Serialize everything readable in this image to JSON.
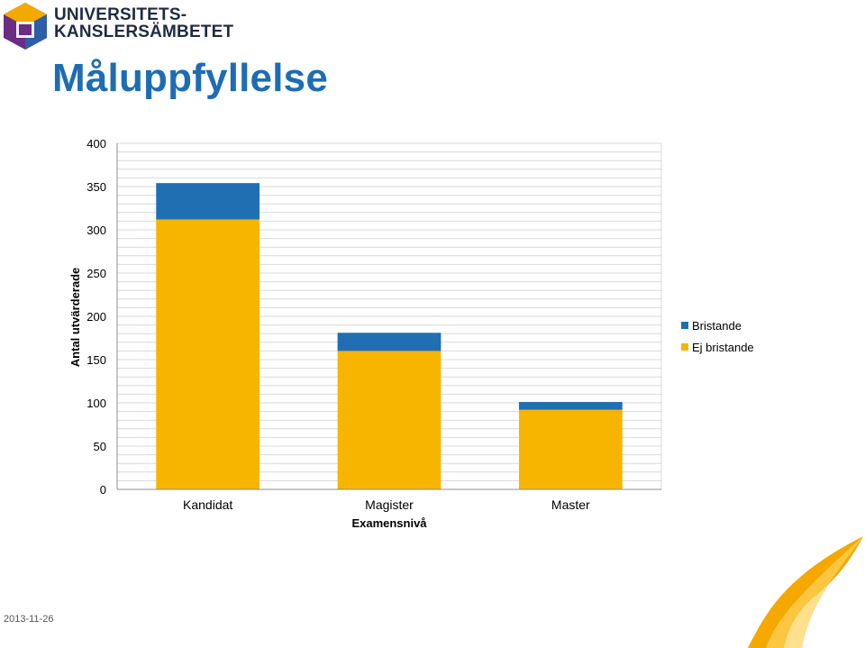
{
  "logo": {
    "line1": "UNIVERSITETS-",
    "line2": "KANSLERSÄMBETET",
    "icon": "hexagon-logo-icon"
  },
  "page_title": "Måluppfyllelse",
  "footer": {
    "date": "2013-11-26"
  },
  "decoration": {
    "icon": "page-curl-icon"
  },
  "colors": {
    "title": "#1e6db3",
    "bristande": "#1f6fb2",
    "ej_bristande": "#f7b500",
    "grid": "#d9d9d9"
  },
  "chart_data": {
    "type": "bar",
    "stacked": true,
    "categories": [
      "Kandidat",
      "Magister",
      "Master"
    ],
    "series": [
      {
        "name": "Ej bristande",
        "values": [
          312,
          160,
          92
        ],
        "color": "#f7b500"
      },
      {
        "name": "Bristande",
        "values": [
          42,
          21,
          9
        ],
        "color": "#1f6fb2"
      }
    ],
    "legend_order": [
      "Bristande",
      "Ej bristande"
    ],
    "legend_colors": [
      "#1f6fb2",
      "#f7b500"
    ],
    "xlabel": "Examensnivå",
    "ylabel": "Antal utvärderade",
    "ylim": [
      0,
      400
    ],
    "y_ticks": [
      0,
      50,
      100,
      150,
      200,
      250,
      300,
      350,
      400
    ],
    "grid": true,
    "legend_position": "right"
  }
}
